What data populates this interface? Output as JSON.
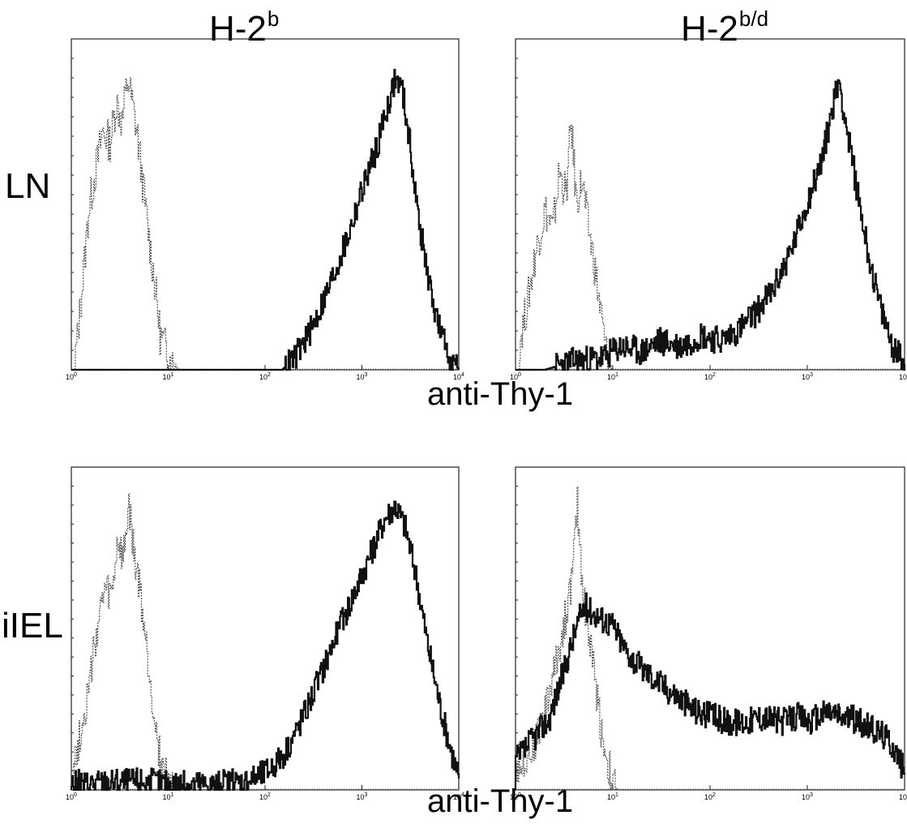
{
  "columns": [
    {
      "base": "H-2",
      "sup": "b"
    },
    {
      "base": "H-2",
      "sup": "b/d"
    }
  ],
  "rows": [
    "LN",
    "iIEL"
  ],
  "xlabel": "anti-Thy-1",
  "colors": {
    "stained": "#111111",
    "control": "#555555",
    "frame": "#222222"
  },
  "chart_data": [
    {
      "type": "area",
      "row": "LN",
      "column": "H-2b",
      "xlabel": "anti-Thy-1",
      "xscale": "log",
      "xlim": [
        1,
        10000
      ],
      "tick_labels": [
        "10^0",
        "10^1",
        "10^2",
        "10^3",
        "10^4"
      ],
      "series": [
        {
          "style": "dashed",
          "points": [
            [
              1.1,
              5
            ],
            [
              1.3,
              30
            ],
            [
              1.5,
              55
            ],
            [
              1.8,
              70
            ],
            [
              2.1,
              82
            ],
            [
              2.5,
              78
            ],
            [
              2.9,
              92
            ],
            [
              3.3,
              85
            ],
            [
              3.8,
              100
            ],
            [
              4.3,
              90
            ],
            [
              4.8,
              80
            ],
            [
              5.5,
              62
            ],
            [
              6.3,
              45
            ],
            [
              7.2,
              30
            ],
            [
              8.2,
              12
            ],
            [
              9.2,
              8
            ],
            [
              10,
              5
            ],
            [
              11,
              2
            ],
            [
              13,
              0
            ]
          ]
        },
        {
          "style": "solid",
          "points": [
            [
              1,
              0
            ],
            [
              150,
              0
            ],
            [
              200,
              4
            ],
            [
              300,
              14
            ],
            [
              450,
              28
            ],
            [
              700,
              45
            ],
            [
              1000,
              62
            ],
            [
              1400,
              76
            ],
            [
              1800,
              90
            ],
            [
              2200,
              100
            ],
            [
              2600,
              96
            ],
            [
              3100,
              78
            ],
            [
              3800,
              52
            ],
            [
              5000,
              28
            ],
            [
              6500,
              12
            ],
            [
              8500,
              3
            ],
            [
              10000,
              0
            ]
          ]
        }
      ]
    },
    {
      "type": "area",
      "row": "LN",
      "column": "H-2b/d",
      "xlabel": "anti-Thy-1",
      "xscale": "log",
      "xlim": [
        1,
        10000
      ],
      "tick_labels": [
        "10^0",
        "10^1",
        "10^2",
        "10^3",
        "10^4"
      ],
      "series": [
        {
          "style": "dashed",
          "points": [
            [
              1.1,
              10
            ],
            [
              1.3,
              22
            ],
            [
              1.6,
              40
            ],
            [
              2,
              55
            ],
            [
              2.4,
              48
            ],
            [
              2.8,
              68
            ],
            [
              3.3,
              60
            ],
            [
              3.7,
              85
            ],
            [
              4.2,
              58
            ],
            [
              4.8,
              65
            ],
            [
              5.5,
              50
            ],
            [
              6.3,
              38
            ],
            [
              7.3,
              22
            ],
            [
              8.5,
              6
            ],
            [
              10,
              0
            ]
          ]
        },
        {
          "style": "solid",
          "points": [
            [
              1,
              0
            ],
            [
              2,
              0
            ],
            [
              4,
              3
            ],
            [
              8,
              4
            ],
            [
              12,
              8
            ],
            [
              20,
              6
            ],
            [
              30,
              10
            ],
            [
              50,
              8
            ],
            [
              80,
              12
            ],
            [
              130,
              10
            ],
            [
              200,
              14
            ],
            [
              300,
              20
            ],
            [
              450,
              28
            ],
            [
              700,
              42
            ],
            [
              1000,
              58
            ],
            [
              1400,
              72
            ],
            [
              1800,
              90
            ],
            [
              2100,
              100
            ],
            [
              2600,
              80
            ],
            [
              3300,
              60
            ],
            [
              4200,
              40
            ],
            [
              5500,
              22
            ],
            [
              7500,
              8
            ],
            [
              10000,
              2
            ]
          ]
        }
      ]
    },
    {
      "type": "area",
      "row": "iIEL",
      "column": "H-2b",
      "xlabel": "anti-Thy-1",
      "xscale": "log",
      "xlim": [
        1,
        10000
      ],
      "tick_labels": [
        "10^0",
        "10^1",
        "10^2",
        "10^3",
        "10^4"
      ],
      "series": [
        {
          "style": "dashed",
          "points": [
            [
              1,
              5
            ],
            [
              1.2,
              18
            ],
            [
              1.5,
              35
            ],
            [
              1.8,
              55
            ],
            [
              2.2,
              70
            ],
            [
              2.6,
              68
            ],
            [
              3,
              88
            ],
            [
              3.4,
              80
            ],
            [
              3.9,
              100
            ],
            [
              4.4,
              82
            ],
            [
              5,
              72
            ],
            [
              5.7,
              55
            ],
            [
              6.5,
              38
            ],
            [
              7.5,
              20
            ],
            [
              8.5,
              8
            ],
            [
              10,
              3
            ],
            [
              12,
              0
            ]
          ]
        },
        {
          "style": "solid",
          "points": [
            [
              1,
              2
            ],
            [
              5,
              3
            ],
            [
              10,
              2
            ],
            [
              30,
              2
            ],
            [
              60,
              3
            ],
            [
              100,
              6
            ],
            [
              150,
              12
            ],
            [
              220,
              22
            ],
            [
              350,
              38
            ],
            [
              550,
              55
            ],
            [
              800,
              68
            ],
            [
              1200,
              82
            ],
            [
              1700,
              95
            ],
            [
              2200,
              100
            ],
            [
              2800,
              92
            ],
            [
              3600,
              75
            ],
            [
              4800,
              50
            ],
            [
              6500,
              28
            ],
            [
              8500,
              12
            ],
            [
              10000,
              4
            ]
          ]
        }
      ]
    },
    {
      "type": "area",
      "row": "iIEL",
      "column": "H-2b/d",
      "xlabel": "anti-Thy-1",
      "xscale": "log",
      "xlim": [
        1,
        10000
      ],
      "tick_labels": [
        "10^0",
        "10^1",
        "10^2",
        "10^3",
        "10^4"
      ],
      "series": [
        {
          "style": "dashed",
          "points": [
            [
              1,
              8
            ],
            [
              1.5,
              15
            ],
            [
              2,
              28
            ],
            [
              2.6,
              45
            ],
            [
              3.2,
              60
            ],
            [
              3.8,
              75
            ],
            [
              4.3,
              100
            ],
            [
              4.9,
              70
            ],
            [
              5.6,
              55
            ],
            [
              6.5,
              40
            ],
            [
              7.5,
              22
            ],
            [
              8.5,
              12
            ],
            [
              10,
              2
            ],
            [
              11,
              0
            ]
          ]
        },
        {
          "style": "solid",
          "points": [
            [
              1,
              10
            ],
            [
              1.5,
              18
            ],
            [
              2.2,
              25
            ],
            [
              3,
              40
            ],
            [
              4,
              55
            ],
            [
              5,
              65
            ],
            [
              6.5,
              62
            ],
            [
              8,
              60
            ],
            [
              10,
              58
            ],
            [
              13,
              50
            ],
            [
              18,
              44
            ],
            [
              25,
              40
            ],
            [
              35,
              36
            ],
            [
              50,
              32
            ],
            [
              70,
              28
            ],
            [
              100,
              26
            ],
            [
              150,
              24
            ],
            [
              220,
              24
            ],
            [
              350,
              26
            ],
            [
              550,
              24
            ],
            [
              800,
              26
            ],
            [
              1100,
              24
            ],
            [
              1600,
              28
            ],
            [
              2200,
              26
            ],
            [
              3000,
              25
            ],
            [
              4200,
              22
            ],
            [
              5800,
              20
            ],
            [
              7500,
              16
            ],
            [
              9000,
              10
            ],
            [
              10000,
              6
            ]
          ]
        }
      ]
    }
  ]
}
